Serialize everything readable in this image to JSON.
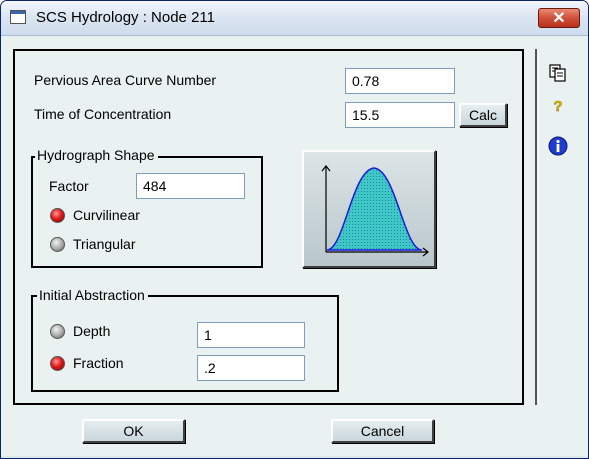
{
  "window": {
    "title": "SCS Hydrology : Node 211",
    "close_glyph": "✕"
  },
  "fields": {
    "pervious_label": "Pervious Area Curve Number",
    "pervious_value": "0.78",
    "toc_label": "Time of Concentration",
    "toc_value": "15.5",
    "calc_label": "Calc"
  },
  "hydrograph": {
    "legend": "Hydrograph Shape",
    "factor_label": "Factor",
    "factor_value": "484",
    "options": [
      {
        "label": "Curvilinear",
        "selected": true
      },
      {
        "label": "Triangular",
        "selected": false
      }
    ]
  },
  "abstraction": {
    "legend": "Initial Abstraction",
    "options": [
      {
        "label": "Depth",
        "selected": false,
        "value": "1"
      },
      {
        "label": "Fraction",
        "selected": true,
        "value": ".2"
      }
    ]
  },
  "footer": {
    "ok_label": "OK",
    "cancel_label": "Cancel"
  },
  "sidebar": {
    "icons": [
      "copy-icon",
      "help-icon",
      "info-icon"
    ]
  },
  "colors": {
    "curve_fill": "#40c8c8",
    "curve_line": "#1c1cd6",
    "selected_radio": "#e11b1b"
  }
}
